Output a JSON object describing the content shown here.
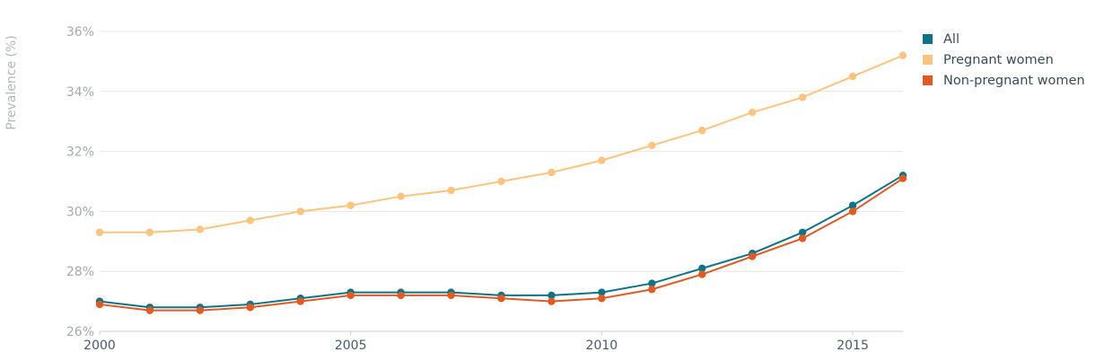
{
  "chart_data": {
    "type": "line",
    "ylabel": "Prevalence (%)",
    "x": [
      2000,
      2001,
      2002,
      2003,
      2004,
      2005,
      2006,
      2007,
      2008,
      2009,
      2010,
      2011,
      2012,
      2013,
      2014,
      2015,
      2016
    ],
    "x_ticks": [
      2000,
      2005,
      2010,
      2015
    ],
    "x_tick_labels": [
      "2000",
      "2005",
      "2010",
      "2015"
    ],
    "ylim": [
      26,
      36
    ],
    "y_ticks": [
      26,
      28,
      30,
      32,
      34,
      36
    ],
    "y_tick_labels": [
      "26%",
      "28%",
      "30%",
      "32%",
      "34%",
      "36%"
    ],
    "grid": true,
    "legend_position": "top-right",
    "series": [
      {
        "name": "All",
        "color": "#0e7389",
        "values": [
          27.0,
          26.8,
          26.8,
          26.9,
          27.1,
          27.3,
          27.3,
          27.3,
          27.2,
          27.2,
          27.3,
          27.6,
          28.1,
          28.6,
          29.3,
          30.2,
          31.2
        ]
      },
      {
        "name": "Pregnant women",
        "color": "#fcc47e",
        "values": [
          29.3,
          29.3,
          29.4,
          29.7,
          30.0,
          30.2,
          30.5,
          30.7,
          31.0,
          31.3,
          31.7,
          32.2,
          32.7,
          33.3,
          33.8,
          34.5,
          35.2
        ]
      },
      {
        "name": "Non-pregnant women",
        "color": "#e05a23",
        "values": [
          26.9,
          26.7,
          26.7,
          26.8,
          27.0,
          27.2,
          27.2,
          27.2,
          27.1,
          27.0,
          27.1,
          27.4,
          27.9,
          28.5,
          29.1,
          30.0,
          31.1
        ]
      }
    ]
  }
}
